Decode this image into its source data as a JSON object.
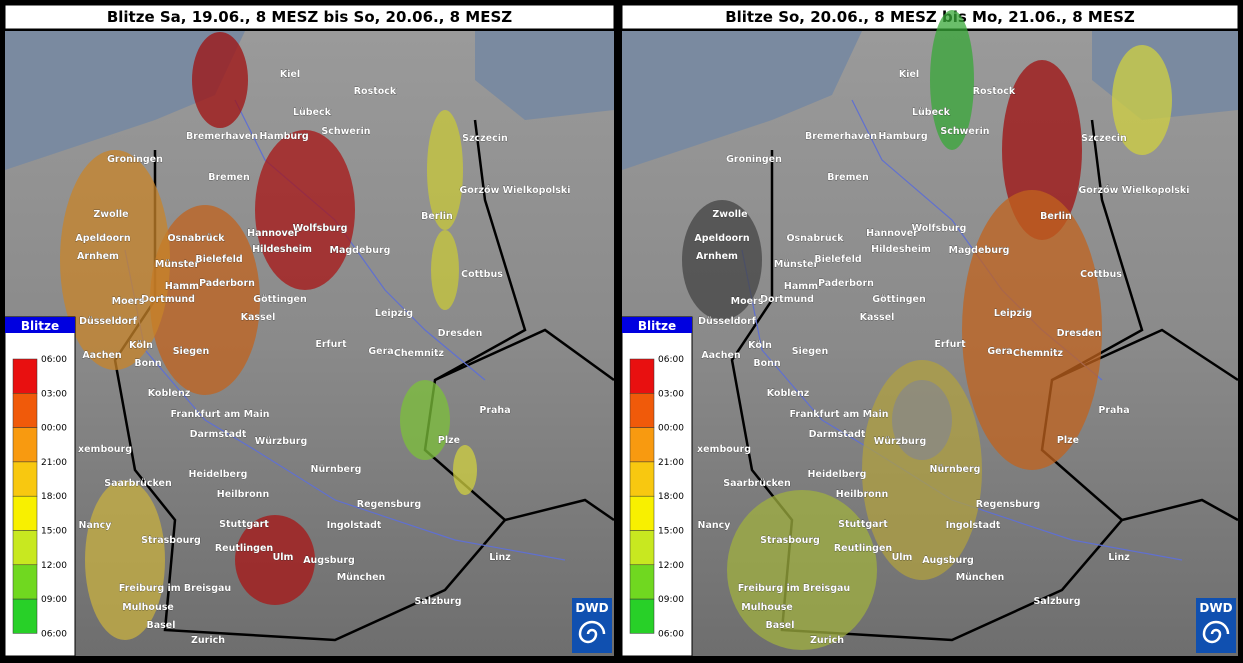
{
  "maps": [
    {
      "title": "Blitze Sa, 19.06., 8 MESZ bis So, 20.06., 8 MESZ",
      "legend": {
        "title": "Blitze",
        "labels": [
          "06:00",
          "03:00",
          "00:00",
          "21:00",
          "18:00",
          "15:00",
          "12:00",
          "09:00",
          "06:00"
        ]
      },
      "cities": [
        "Kiel",
        "Rostock",
        "Lübeck",
        "Schwerin",
        "Szczecin",
        "Bremerhaven",
        "Hamburg",
        "Groningen",
        "Bremen",
        "Gorzów Wielkopolski",
        "Zwolle",
        "Berlin",
        "Wolfsburg",
        "Apeldoorn",
        "Osnabrück",
        "Hannover",
        "Hildesheim",
        "Magdeburg",
        "Arnhem",
        "Münster",
        "Bielefeld",
        "Cottbus",
        "Hamm",
        "Paderborn",
        "Dortmund",
        "Moers",
        "Göttingen",
        "Düsseldorf",
        "Kassel",
        "Leipzig",
        "Dresden",
        "Aachen",
        "Köln",
        "Siegen",
        "Erfurt",
        "Gera",
        "Chemnitz",
        "Bonn",
        "Koblenz",
        "Frankfurt am Main",
        "Praha",
        "Darmstadt",
        "Würzburg",
        "Plze",
        "xembourg",
        "Nürnberg",
        "Heidelberg",
        "Saarbrücken",
        "Heilbronn",
        "Regensburg",
        "Nancy",
        "Stuttgart",
        "Ingolstadt",
        "Strasbourg",
        "Reutlingen",
        "Ulm",
        "Augsburg",
        "Linz",
        "München",
        "Freiburg im Breisgau",
        "Salzburg",
        "Mulhouse",
        "Basel",
        "Zurich"
      ],
      "logo": "DWD"
    },
    {
      "title": "Blitze So, 20.06., 8 MESZ bis Mo, 21.06., 8 MESZ",
      "legend": {
        "title": "Blitze",
        "labels": [
          "06:00",
          "03:00",
          "00:00",
          "21:00",
          "18:00",
          "15:00",
          "12:00",
          "09:00",
          "06:00"
        ]
      },
      "cities": [
        "Kiel",
        "Rostock",
        "Lübeck",
        "Schwerin",
        "Szczecin",
        "Bremerhaven",
        "Hamburg",
        "Groningen",
        "Bremen",
        "Gorzów Wielkopolski",
        "Zwolle",
        "Berlin",
        "Wolfsburg",
        "Apeldoorn",
        "Osnabrück",
        "Hannover",
        "Hildesheim",
        "Magdeburg",
        "Arnhem",
        "Münster",
        "Bielefeld",
        "Cottbus",
        "Hamm",
        "Paderborn",
        "Dortmund",
        "Moers",
        "Göttingen",
        "Düsseldorf",
        "Kassel",
        "Leipzig",
        "Dresden",
        "Aachen",
        "Köln",
        "Siegen",
        "Erfurt",
        "Gera",
        "Chemnitz",
        "Bonn",
        "Koblenz",
        "Frankfurt am Main",
        "Praha",
        "Darmstadt",
        "Würzburg",
        "Plze",
        "xembourg",
        "Nürnberg",
        "Heidelberg",
        "Saarbrücken",
        "Heilbronn",
        "Regensburg",
        "Nancy",
        "Stuttgart",
        "Ingolstadt",
        "Strasbourg",
        "Reutlingen",
        "Ulm",
        "Augsburg",
        "Linz",
        "München",
        "Freiburg im Breisgau",
        "Salzburg",
        "Mulhouse",
        "Basel",
        "Zurich"
      ],
      "logo": "DWD"
    }
  ]
}
